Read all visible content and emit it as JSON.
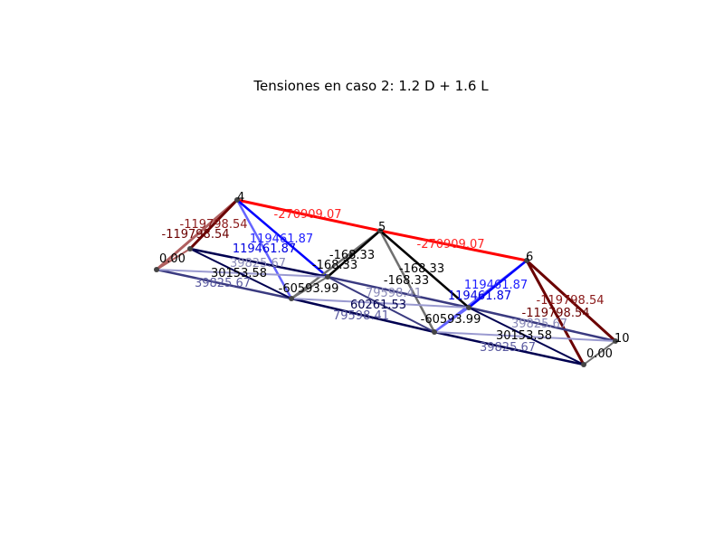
{
  "title": "Tensiones en caso 2: 1.2 D + 1.6 L",
  "colors": {
    "compression_strong": "#ff0000",
    "compression_dark": "#6b0000",
    "compression_mid": "#b06060",
    "tension_strong": "#0000ff",
    "tension_mid": "#6464ff",
    "tension_light": "#9a9ad0",
    "tension_dark": "#000050",
    "tension_slate": "#3a3a80",
    "neutral": "#000000",
    "neutral_grey": "#707070",
    "neutral_light": "#b0b0b0",
    "node": "#444444"
  },
  "node_labels": [
    {
      "id": "n0",
      "text": "0.00"
    },
    {
      "id": "n4",
      "text": "4"
    },
    {
      "id": "n5",
      "text": "5"
    },
    {
      "id": "n6",
      "text": "6"
    },
    {
      "id": "n10",
      "text": "10"
    },
    {
      "id": "n11",
      "text": "0.00"
    }
  ],
  "member_labels": [
    {
      "text": "-270909.07",
      "color": "#ff2020"
    },
    {
      "text": "-270909.07",
      "color": "#ff2020"
    },
    {
      "text": "-119798.54",
      "color": "#8b1a1a"
    },
    {
      "text": "-119798.54",
      "color": "#6b0000"
    },
    {
      "text": "-119798.54",
      "color": "#8b1a1a"
    },
    {
      "text": "-119798.54",
      "color": "#6b0000"
    },
    {
      "text": "119461.87",
      "color": "#2020ff"
    },
    {
      "text": "119461.87",
      "color": "#0000e0"
    },
    {
      "text": "119461.87",
      "color": "#2020ff"
    },
    {
      "text": "119461.87",
      "color": "#0000e0"
    },
    {
      "text": "-168.33",
      "color": "#000000"
    },
    {
      "text": "-168.33",
      "color": "#000000"
    },
    {
      "text": "-168.33",
      "color": "#000000"
    },
    {
      "text": "-168.33",
      "color": "#000000"
    },
    {
      "text": "39825.67",
      "color": "#8a8ab8"
    },
    {
      "text": "39825.67",
      "color": "#5a5aa0"
    },
    {
      "text": "39825.67",
      "color": "#8a8ab8"
    },
    {
      "text": "39825.67",
      "color": "#5a5aa0"
    },
    {
      "text": "30153.58",
      "color": "#000000"
    },
    {
      "text": "30153.58",
      "color": "#000000"
    },
    {
      "text": "-60593.99",
      "color": "#000000"
    },
    {
      "text": "-60593.99",
      "color": "#000000"
    },
    {
      "text": "79598.41",
      "color": "#8a8ab8"
    },
    {
      "text": "79598.41",
      "color": "#5a5aa0"
    },
    {
      "text": "60261.53",
      "color": "#000050"
    }
  ]
}
